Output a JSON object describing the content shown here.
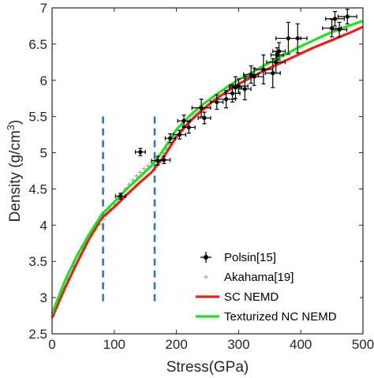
{
  "chart_data": {
    "type": "scatter",
    "xlabel": "Stress(GPa)",
    "ylabel": "Density (g/cm³)",
    "ylabel_parts": {
      "main": "Density (g/cm",
      "sup": "3",
      "close": ")"
    },
    "xlim": [
      0,
      500
    ],
    "ylim": [
      2.5,
      7
    ],
    "xticks": [
      "0",
      "100",
      "200",
      "300",
      "400",
      "500"
    ],
    "yticks": [
      "2.5",
      "3",
      "3.5",
      "4",
      "4.5",
      "5",
      "5.5",
      "6",
      "6.5",
      "7"
    ],
    "grid": false,
    "legend_position": "bottom-right",
    "legend_labels": [
      "Polsin[15]",
      "Akahama[19]",
      "SC NEMD",
      "Texturized NC NEMD"
    ],
    "colors": {
      "polsin": "#000000",
      "akahama": "#999999",
      "sc": "#e8201a",
      "nc": "#22e01e",
      "vlines": "#1f77c4"
    },
    "series": [
      {
        "name": "Polsin[15]",
        "kind": "errorbar",
        "x": [
          110,
          142,
          170,
          180,
          190,
          205,
          212,
          220,
          240,
          245,
          265,
          280,
          290,
          295,
          300,
          310,
          320,
          325,
          340,
          355,
          360,
          362,
          365,
          380,
          395,
          450,
          455,
          462,
          475
        ],
        "y": [
          4.4,
          5.01,
          4.89,
          4.9,
          5.2,
          5.25,
          5.44,
          5.35,
          5.62,
          5.48,
          5.7,
          5.74,
          5.82,
          5.9,
          5.92,
          5.88,
          6.08,
          6.05,
          6.15,
          6.1,
          6.25,
          6.35,
          6.4,
          6.58,
          6.58,
          6.72,
          6.85,
          6.7,
          6.88
        ],
        "xerr": [
          8,
          8,
          10,
          10,
          8,
          10,
          10,
          10,
          15,
          10,
          10,
          15,
          12,
          10,
          15,
          10,
          12,
          15,
          15,
          12,
          15,
          10,
          10,
          20,
          15,
          15,
          15,
          12,
          15
        ],
        "yerr": [
          0.04,
          0.05,
          0.06,
          0.05,
          0.06,
          0.06,
          0.08,
          0.08,
          0.12,
          0.08,
          0.1,
          0.12,
          0.12,
          0.15,
          0.1,
          0.15,
          0.12,
          0.12,
          0.2,
          0.2,
          0.15,
          0.1,
          0.12,
          0.22,
          0.2,
          0.12,
          0.1,
          0.1,
          0.1
        ]
      },
      {
        "name": "Akahama[19]",
        "kind": "marker",
        "x": [
          5,
          15,
          25,
          35,
          45,
          52,
          58,
          64,
          70,
          76,
          82,
          88,
          94,
          100,
          106,
          112,
          118,
          124,
          130,
          136,
          142,
          148,
          154,
          160,
          166,
          172,
          178,
          184,
          190,
          196,
          202,
          208,
          214,
          220,
          226,
          232,
          238,
          244,
          250
        ],
        "y": [
          2.85,
          3.05,
          3.25,
          3.42,
          3.58,
          3.68,
          3.77,
          3.86,
          3.94,
          4.01,
          4.08,
          4.15,
          4.22,
          4.29,
          4.36,
          4.43,
          4.5,
          4.56,
          4.62,
          4.68,
          4.73,
          4.78,
          4.82,
          4.86,
          4.9,
          4.95,
          5.0,
          5.06,
          5.12,
          5.18,
          5.24,
          5.3,
          5.36,
          5.42,
          5.47,
          5.52,
          5.56,
          5.6,
          5.64
        ]
      },
      {
        "name": "SC NEMD",
        "kind": "line",
        "x": [
          0,
          20,
          40,
          60,
          80,
          100,
          120,
          140,
          160,
          180,
          200,
          220,
          240,
          260,
          280,
          300,
          320,
          340,
          360,
          380,
          400,
          420,
          440,
          460,
          480,
          500
        ],
        "y": [
          2.72,
          3.12,
          3.48,
          3.82,
          4.1,
          4.25,
          4.42,
          4.58,
          4.73,
          4.95,
          5.22,
          5.42,
          5.58,
          5.72,
          5.84,
          5.95,
          6.04,
          6.13,
          6.21,
          6.29,
          6.37,
          6.45,
          6.52,
          6.59,
          6.66,
          6.74
        ]
      },
      {
        "name": "Texturized NC NEMD",
        "kind": "line",
        "x": [
          0,
          20,
          40,
          60,
          80,
          100,
          120,
          140,
          160,
          180,
          200,
          220,
          240,
          260,
          280,
          300,
          320,
          340,
          360,
          380,
          400,
          420,
          440,
          460,
          480,
          500
        ],
        "y": [
          2.78,
          3.22,
          3.58,
          3.88,
          4.15,
          4.32,
          4.5,
          4.66,
          4.82,
          5.05,
          5.32,
          5.5,
          5.65,
          5.78,
          5.9,
          6.01,
          6.1,
          6.2,
          6.29,
          6.38,
          6.47,
          6.55,
          6.63,
          6.7,
          6.76,
          6.82
        ]
      }
    ],
    "vlines": [
      {
        "x": 82,
        "y0": 2.95,
        "y1": 5.5
      },
      {
        "x": 165,
        "y0": 2.95,
        "y1": 5.5
      }
    ]
  }
}
